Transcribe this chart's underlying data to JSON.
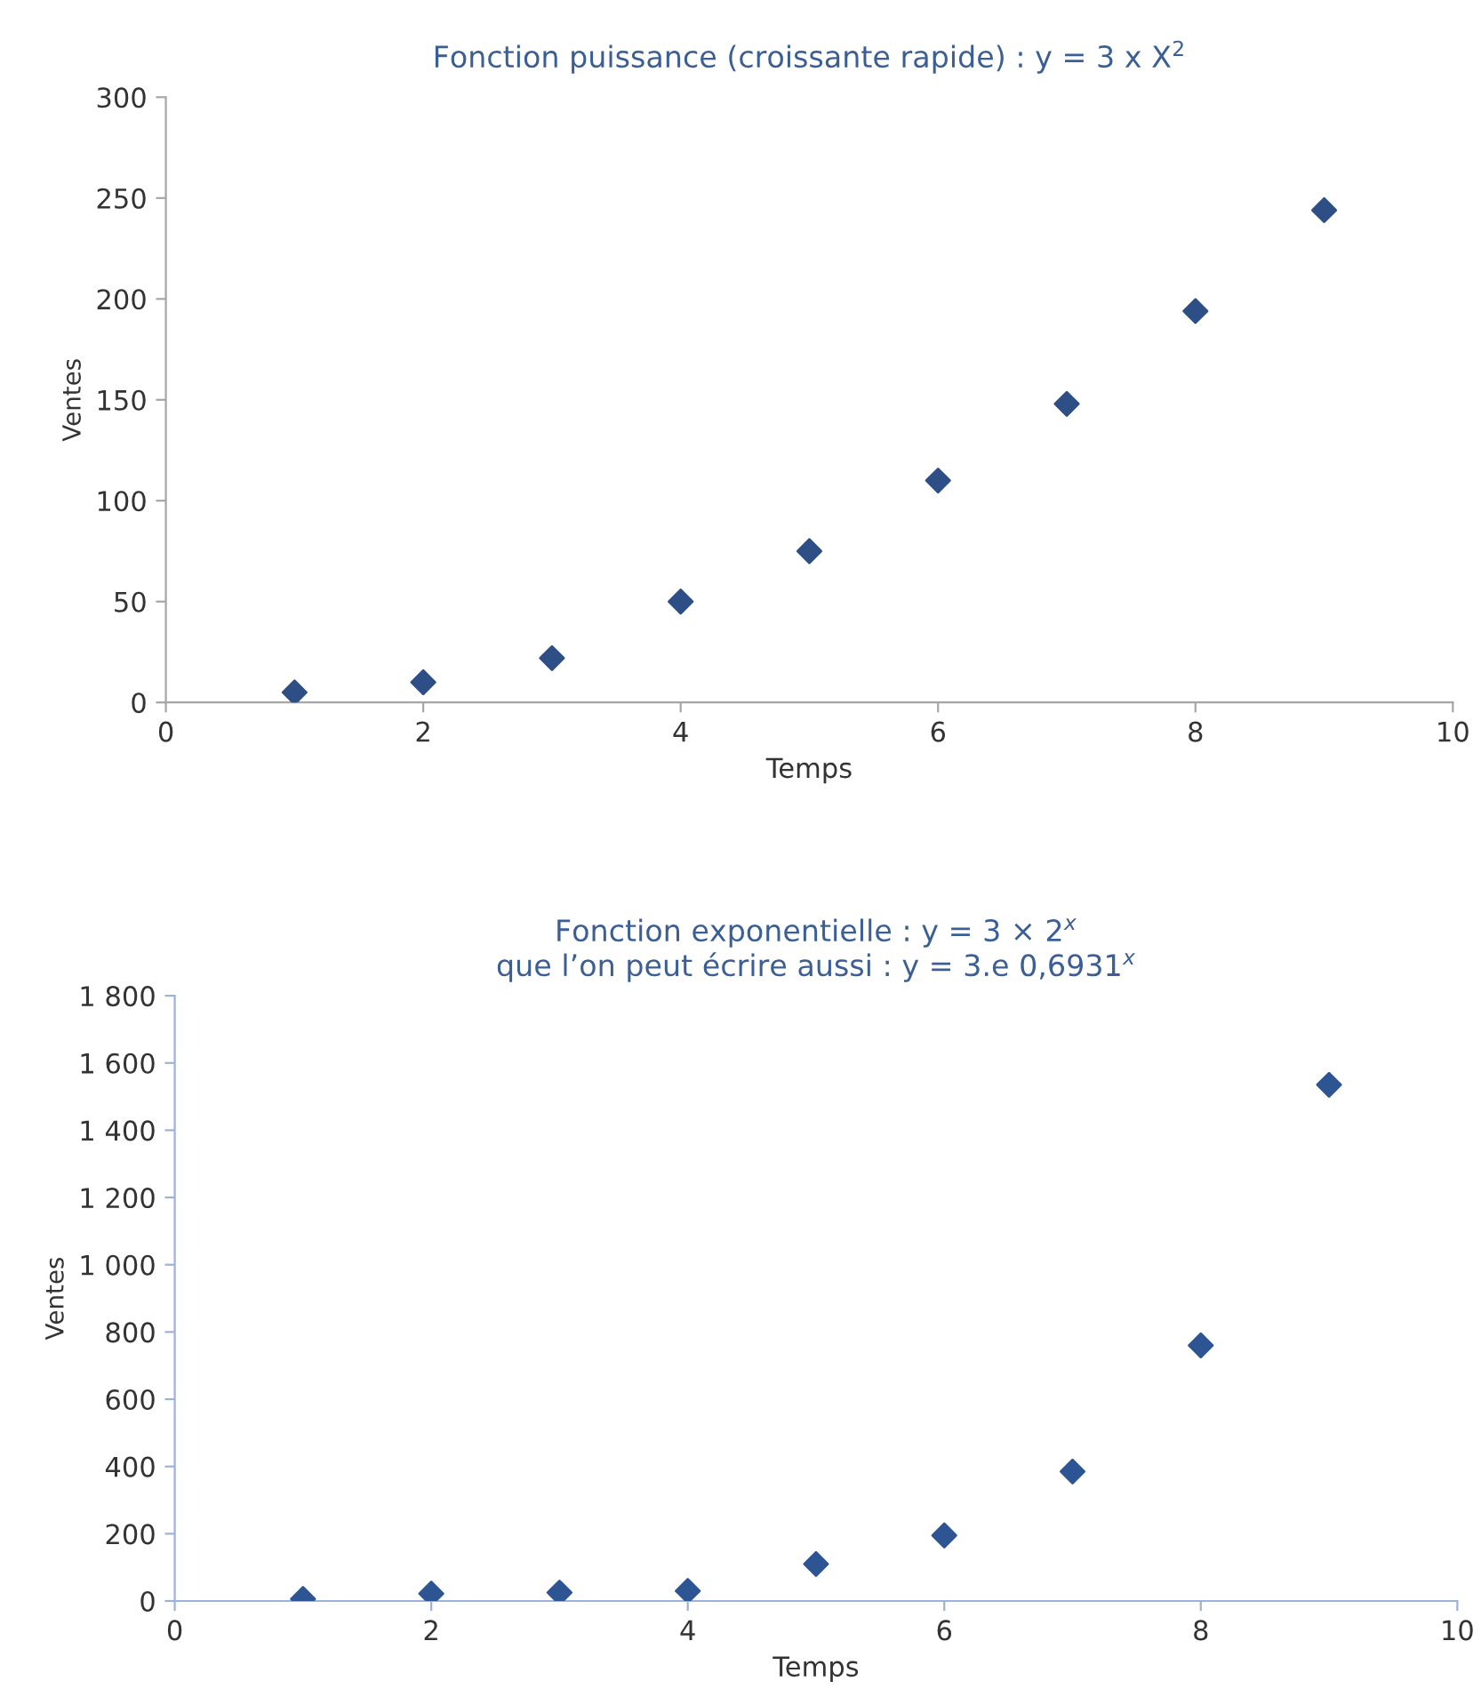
{
  "chart_data": [
    {
      "type": "scatter",
      "title": "Fonction puissance (croissante rapide) : y = 3 x X$^{2}$",
      "xlabel": "Temps",
      "ylabel": "Ventes",
      "x": [
        1,
        2,
        3,
        4,
        5,
        6,
        7,
        8,
        9
      ],
      "series": [
        {
          "color": "#2e4f86",
          "values": [
            5,
            10,
            22,
            50,
            75,
            110,
            148,
            194,
            244
          ]
        }
      ],
      "marker": "diamond",
      "xlim": [
        0,
        10
      ],
      "xticks": [
        0,
        2,
        4,
        6,
        8,
        10
      ],
      "ylim": [
        0,
        300
      ],
      "yticks": [
        0,
        50,
        100,
        150,
        200,
        250,
        300
      ],
      "grid": false,
      "legend": false
    },
    {
      "type": "scatter",
      "title": "Fonction exponentielle : y = 3 × 2$^{x}$",
      "subtitle": "que l’on peut écrire aussi : y = 3.e 0,6931$^{x}$",
      "xlabel": "Temps",
      "ylabel": "Ventes",
      "x": [
        1,
        2,
        3,
        4,
        5,
        6,
        7,
        8,
        9
      ],
      "series": [
        {
          "color": "#2e5593",
          "values": [
            6,
            22,
            25,
            30,
            110,
            195,
            385,
            760,
            1535
          ]
        }
      ],
      "marker": "diamond",
      "xlim": [
        0,
        10
      ],
      "xticks": [
        0,
        2,
        4,
        6,
        8,
        10
      ],
      "ylim": [
        0,
        1800
      ],
      "yticks": [
        0,
        200,
        400,
        600,
        800,
        {
          "value": 1000,
          "label": "1 000"
        },
        {
          "value": 1200,
          "label": "1 200"
        },
        {
          "value": 1400,
          "label": "1 400"
        },
        {
          "value": 1600,
          "label": "1 600"
        },
        {
          "value": 1800,
          "label": "1 800"
        }
      ],
      "grid": false,
      "legend": false
    }
  ]
}
